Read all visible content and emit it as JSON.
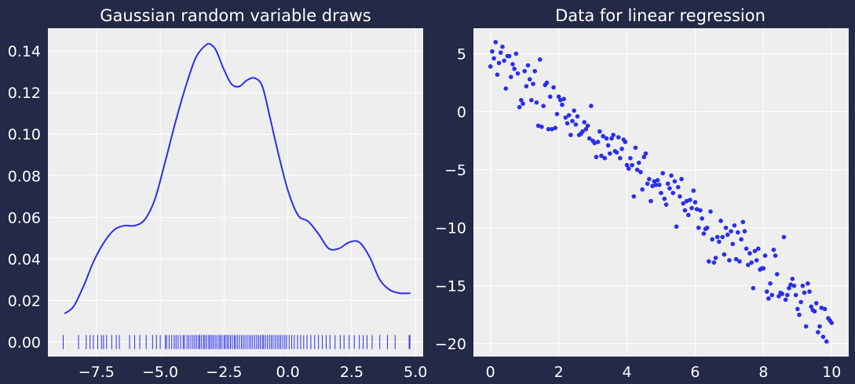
{
  "colors": {
    "figure_bg": "#232946",
    "axes_bg": "#eeeeee",
    "grid": "#ffffff",
    "series": "#2a2eec",
    "text": "#ffffff"
  },
  "chart_data": [
    {
      "type": "line",
      "title": "Gaussian random variable draws",
      "xlabel": "",
      "ylabel": "",
      "xlim": [
        -9.4,
        5.3
      ],
      "ylim": [
        -0.007,
        0.151
      ],
      "xticks": [
        -7.5,
        -5.0,
        -2.5,
        0.0,
        2.5,
        5.0
      ],
      "xtick_labels": [
        "−7.5",
        "−5.0",
        "−2.5",
        "0.0",
        "2.5",
        "5.0"
      ],
      "yticks": [
        0.0,
        0.02,
        0.04,
        0.06,
        0.08,
        0.1,
        0.12,
        0.14
      ],
      "ytick_labels": [
        "0.00",
        "0.02",
        "0.04",
        "0.06",
        "0.08",
        "0.10",
        "0.12",
        "0.14"
      ],
      "grid": true,
      "kde": {
        "x": [
          -8.75,
          -8.4,
          -8.0,
          -7.6,
          -7.2,
          -6.8,
          -6.4,
          -6.0,
          -5.6,
          -5.2,
          -4.8,
          -4.4,
          -4.0,
          -3.6,
          -3.2,
          -3.0,
          -2.8,
          -2.5,
          -2.2,
          -1.9,
          -1.6,
          -1.3,
          -1.0,
          -0.7,
          -0.4,
          0.0,
          0.4,
          0.8,
          1.2,
          1.6,
          2.0,
          2.4,
          2.8,
          3.2,
          3.6,
          4.0,
          4.4,
          4.8
        ],
        "y": [
          0.0137,
          0.017,
          0.027,
          0.039,
          0.048,
          0.054,
          0.056,
          0.056,
          0.059,
          0.069,
          0.087,
          0.106,
          0.123,
          0.137,
          0.143,
          0.143,
          0.14,
          0.131,
          0.124,
          0.123,
          0.126,
          0.127,
          0.123,
          0.108,
          0.092,
          0.073,
          0.061,
          0.058,
          0.052,
          0.045,
          0.045,
          0.048,
          0.048,
          0.041,
          0.03,
          0.025,
          0.0235,
          0.0235
        ]
      },
      "rug_y": 0.0,
      "rug": [
        -8.8,
        -8.2,
        -7.9,
        -7.75,
        -7.62,
        -7.45,
        -7.3,
        -7.22,
        -7.1,
        -6.9,
        -6.72,
        -6.6,
        -6.2,
        -6.0,
        -5.8,
        -5.55,
        -5.3,
        -5.15,
        -5.0,
        -4.8,
        -4.75,
        -4.65,
        -4.55,
        -4.45,
        -4.38,
        -4.3,
        -4.2,
        -4.1,
        -4.05,
        -3.95,
        -3.88,
        -3.8,
        -3.72,
        -3.65,
        -3.58,
        -3.5,
        -3.45,
        -3.38,
        -3.3,
        -3.25,
        -3.18,
        -3.1,
        -3.05,
        -2.98,
        -2.92,
        -2.85,
        -2.78,
        -2.7,
        -2.65,
        -2.58,
        -2.5,
        -2.45,
        -2.38,
        -2.32,
        -2.25,
        -2.18,
        -2.1,
        -2.05,
        -1.98,
        -1.9,
        -1.82,
        -1.75,
        -1.68,
        -1.6,
        -1.52,
        -1.45,
        -1.38,
        -1.3,
        -1.22,
        -1.15,
        -1.08,
        -1.0,
        -0.95,
        -0.88,
        -0.8,
        -0.72,
        -0.65,
        -0.58,
        -0.5,
        -0.42,
        -0.35,
        -0.28,
        -0.2,
        -0.12,
        -0.05,
        0.05,
        0.15,
        0.25,
        0.38,
        0.5,
        0.62,
        0.75,
        0.9,
        1.05,
        1.2,
        1.35,
        1.5,
        1.65,
        1.85,
        2.05,
        2.2,
        2.4,
        2.6,
        2.8,
        2.95,
        3.1,
        3.3,
        3.6,
        3.9,
        4.2,
        4.75,
        4.78
      ]
    },
    {
      "type": "scatter",
      "title": "Data for linear regression",
      "xlabel": "",
      "ylabel": "",
      "xlim": [
        -0.5,
        10.5
      ],
      "ylim": [
        -21.1,
        7.2
      ],
      "xticks": [
        0,
        2,
        4,
        6,
        8,
        10
      ],
      "xtick_labels": [
        "0",
        "2",
        "4",
        "6",
        "8",
        "10"
      ],
      "yticks": [
        5,
        0,
        -5,
        -10,
        -15,
        -20
      ],
      "ytick_labels": [
        "5",
        "0",
        "−5",
        "−10",
        "−15",
        "−20"
      ],
      "grid": true,
      "points": [
        [
          0.0,
          3.9
        ],
        [
          0.05,
          5.2
        ],
        [
          0.1,
          4.6
        ],
        [
          0.15,
          6.0
        ],
        [
          0.2,
          3.2
        ],
        [
          0.25,
          4.2
        ],
        [
          0.3,
          5.1
        ],
        [
          0.35,
          5.6
        ],
        [
          0.4,
          4.4
        ],
        [
          0.45,
          2.0
        ],
        [
          0.5,
          4.8
        ],
        [
          0.55,
          4.8
        ],
        [
          0.6,
          3.0
        ],
        [
          0.65,
          4.1
        ],
        [
          0.7,
          3.7
        ],
        [
          0.75,
          5.0
        ],
        [
          0.8,
          3.3
        ],
        [
          0.85,
          0.4
        ],
        [
          0.9,
          1.0
        ],
        [
          0.95,
          0.7
        ],
        [
          1.0,
          3.5
        ],
        [
          1.05,
          2.2
        ],
        [
          1.1,
          4.0
        ],
        [
          1.15,
          2.8
        ],
        [
          1.2,
          1.0
        ],
        [
          1.25,
          2.4
        ],
        [
          1.3,
          3.5
        ],
        [
          1.35,
          0.8
        ],
        [
          1.4,
          -1.2
        ],
        [
          1.45,
          4.5
        ],
        [
          1.5,
          -1.3
        ],
        [
          1.55,
          0.5
        ],
        [
          1.6,
          2.3
        ],
        [
          1.65,
          2.5
        ],
        [
          1.7,
          -1.5
        ],
        [
          1.75,
          1.3
        ],
        [
          1.8,
          -1.5
        ],
        [
          1.85,
          2.1
        ],
        [
          1.9,
          -1.4
        ],
        [
          1.95,
          -0.2
        ],
        [
          2.0,
          1.3
        ],
        [
          2.05,
          1.0
        ],
        [
          2.1,
          0.6
        ],
        [
          2.15,
          1.1
        ],
        [
          2.2,
          -0.5
        ],
        [
          2.25,
          -1.0
        ],
        [
          2.3,
          -0.3
        ],
        [
          2.35,
          -2.0
        ],
        [
          2.4,
          -0.8
        ],
        [
          2.45,
          0.1
        ],
        [
          2.5,
          -1.1
        ],
        [
          2.55,
          -0.4
        ],
        [
          2.6,
          -2.0
        ],
        [
          2.65,
          -1.9
        ],
        [
          2.7,
          -1.7
        ],
        [
          2.75,
          -0.9
        ],
        [
          2.8,
          -1.5
        ],
        [
          2.85,
          -1.2
        ],
        [
          2.9,
          -2.3
        ],
        [
          2.95,
          0.5
        ],
        [
          3.0,
          -2.5
        ],
        [
          3.05,
          -2.7
        ],
        [
          3.1,
          -3.9
        ],
        [
          3.15,
          -2.6
        ],
        [
          3.2,
          -1.7
        ],
        [
          3.25,
          -3.8
        ],
        [
          3.3,
          -2.1
        ],
        [
          3.35,
          -4.0
        ],
        [
          3.4,
          -2.3
        ],
        [
          3.45,
          -2.9
        ],
        [
          3.5,
          -3.6
        ],
        [
          3.55,
          -2.3
        ],
        [
          3.6,
          -2.0
        ],
        [
          3.65,
          -3.4
        ],
        [
          3.7,
          -3.5
        ],
        [
          3.75,
          -2.2
        ],
        [
          3.8,
          -4.0
        ],
        [
          3.85,
          -3.2
        ],
        [
          3.9,
          -2.4
        ],
        [
          3.95,
          -2.6
        ],
        [
          4.0,
          -4.6
        ],
        [
          4.05,
          -4.9
        ],
        [
          4.1,
          -4.0
        ],
        [
          4.15,
          -4.6
        ],
        [
          4.2,
          -7.3
        ],
        [
          4.25,
          -3.1
        ],
        [
          4.3,
          -5.0
        ],
        [
          4.35,
          -4.4
        ],
        [
          4.4,
          -5.2
        ],
        [
          4.45,
          -6.7
        ],
        [
          4.5,
          -3.9
        ],
        [
          4.55,
          -3.6
        ],
        [
          4.6,
          -6.2
        ],
        [
          4.65,
          -5.8
        ],
        [
          4.7,
          -7.7
        ],
        [
          4.75,
          -6.4
        ],
        [
          4.8,
          -6.0
        ],
        [
          4.85,
          -6.3
        ],
        [
          4.9,
          -5.9
        ],
        [
          4.95,
          -6.3
        ],
        [
          5.0,
          -7.0
        ],
        [
          5.05,
          -5.3
        ],
        [
          5.1,
          -7.5
        ],
        [
          5.15,
          -8.0
        ],
        [
          5.2,
          -6.2
        ],
        [
          5.25,
          -6.6
        ],
        [
          5.3,
          -5.5
        ],
        [
          5.35,
          -7.0
        ],
        [
          5.4,
          -6.0
        ],
        [
          5.45,
          -9.9
        ],
        [
          5.5,
          -6.5
        ],
        [
          5.55,
          -7.3
        ],
        [
          5.6,
          -5.8
        ],
        [
          5.65,
          -7.9
        ],
        [
          5.7,
          -8.5
        ],
        [
          5.75,
          -7.7
        ],
        [
          5.8,
          -8.9
        ],
        [
          5.85,
          -7.6
        ],
        [
          5.9,
          -8.3
        ],
        [
          5.95,
          -6.8
        ],
        [
          6.0,
          -7.8
        ],
        [
          6.05,
          -8.4
        ],
        [
          6.1,
          -10.0
        ],
        [
          6.15,
          -8.5
        ],
        [
          6.2,
          -9.2
        ],
        [
          6.25,
          -10.5
        ],
        [
          6.3,
          -10.1
        ],
        [
          6.35,
          -10.0
        ],
        [
          6.4,
          -12.9
        ],
        [
          6.45,
          -8.6
        ],
        [
          6.5,
          -11.0
        ],
        [
          6.55,
          -13.0
        ],
        [
          6.6,
          -12.6
        ],
        [
          6.65,
          -10.8
        ],
        [
          6.7,
          -11.2
        ],
        [
          6.75,
          -9.4
        ],
        [
          6.8,
          -10.8
        ],
        [
          6.85,
          -12.3
        ],
        [
          6.9,
          -10.0
        ],
        [
          6.95,
          -10.6
        ],
        [
          7.0,
          -12.8
        ],
        [
          7.05,
          -10.3
        ],
        [
          7.1,
          -11.4
        ],
        [
          7.15,
          -9.8
        ],
        [
          7.2,
          -12.7
        ],
        [
          7.25,
          -10.4
        ],
        [
          7.3,
          -12.9
        ],
        [
          7.35,
          -11.0
        ],
        [
          7.4,
          -9.5
        ],
        [
          7.45,
          -10.3
        ],
        [
          7.5,
          -11.8
        ],
        [
          7.55,
          -13.2
        ],
        [
          7.6,
          -12.2
        ],
        [
          7.65,
          -13.0
        ],
        [
          7.7,
          -15.2
        ],
        [
          7.75,
          -12.0
        ],
        [
          7.8,
          -12.8
        ],
        [
          7.85,
          -11.8
        ],
        [
          7.9,
          -13.6
        ],
        [
          7.95,
          -13.5
        ],
        [
          8.0,
          -13.5
        ],
        [
          8.05,
          -12.4
        ],
        [
          8.1,
          -15.5
        ],
        [
          8.15,
          -16.1
        ],
        [
          8.2,
          -14.8
        ],
        [
          8.25,
          -15.8
        ],
        [
          8.3,
          -11.9
        ],
        [
          8.35,
          -12.4
        ],
        [
          8.4,
          -14.0
        ],
        [
          8.45,
          -15.9
        ],
        [
          8.5,
          -15.6
        ],
        [
          8.55,
          -15.7
        ],
        [
          8.6,
          -10.8
        ],
        [
          8.65,
          -16.2
        ],
        [
          8.7,
          -15.8
        ],
        [
          8.75,
          -15.2
        ],
        [
          8.8,
          -14.9
        ],
        [
          8.85,
          -14.4
        ],
        [
          8.9,
          -15.0
        ],
        [
          8.95,
          -15.8
        ],
        [
          9.0,
          -17.0
        ],
        [
          9.05,
          -17.5
        ],
        [
          9.1,
          -16.4
        ],
        [
          9.15,
          -15.0
        ],
        [
          9.2,
          -15.6
        ],
        [
          9.25,
          -18.5
        ],
        [
          9.3,
          -14.8
        ],
        [
          9.35,
          -15.5
        ],
        [
          9.4,
          -16.8
        ],
        [
          9.45,
          -17.1
        ],
        [
          9.5,
          -17.2
        ],
        [
          9.55,
          -16.5
        ],
        [
          9.6,
          -19.0
        ],
        [
          9.65,
          -18.5
        ],
        [
          9.7,
          -16.9
        ],
        [
          9.75,
          -19.4
        ],
        [
          9.8,
          -17.0
        ],
        [
          9.85,
          -19.8
        ],
        [
          9.9,
          -17.8
        ],
        [
          9.95,
          -18.0
        ],
        [
          10.0,
          -18.2
        ]
      ]
    }
  ]
}
